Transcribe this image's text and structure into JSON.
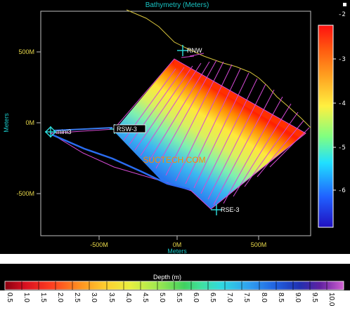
{
  "top_figure": {
    "title": "Bathymetry (Meters)",
    "x_axis_label": "Meters",
    "y_axis_label": "Meters",
    "x_ticks": [
      "-500M",
      "0M",
      "500M"
    ],
    "y_ticks": [
      "500M",
      "0M",
      "-500M"
    ],
    "colorbar_ticks": [
      "-2",
      "-3",
      "-4",
      "-5",
      "-6"
    ],
    "stations": [
      "RNW",
      "RSW-3",
      "mini3",
      "RSE-3"
    ],
    "watermark": "SUCTECH.COM"
  },
  "bottom_colorbar": {
    "title": "Depth (m)",
    "ticks": [
      "0.5",
      "1.0",
      "1.5",
      "2.0",
      "2.5",
      "3.0",
      "3.5",
      "4.0",
      "4.5",
      "5.0",
      "5.5",
      "6.0",
      "6.5",
      "7.0",
      "7.5",
      "8.0",
      "8.5",
      "9.0",
      "9.5",
      "10.0"
    ]
  },
  "colors": {
    "axis_text": "#19c4c4",
    "tick_text": "#e8d84a",
    "station_marker": "#2ee0e0",
    "track_lines": "#d44ad4",
    "shoreline": "#d6c33c",
    "watermark": "#ff8a00"
  }
}
